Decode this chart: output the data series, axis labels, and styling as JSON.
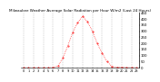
{
  "title": "Milwaukee Weather Average Solar Radiation per Hour W/m2 (Last 24 Hours)",
  "x_values": [
    0,
    1,
    2,
    3,
    4,
    5,
    6,
    7,
    8,
    9,
    10,
    11,
    12,
    13,
    14,
    15,
    16,
    17,
    18,
    19,
    20,
    21,
    22,
    23
  ],
  "y_values": [
    0,
    0,
    0,
    0,
    0,
    0,
    2,
    15,
    80,
    180,
    290,
    370,
    420,
    380,
    300,
    200,
    120,
    50,
    10,
    5,
    3,
    2,
    1,
    0
  ],
  "line_color": "#ff0000",
  "bg_color": "#ffffff",
  "grid_color": "#999999",
  "ylim": [
    0,
    450
  ],
  "xlim": [
    -0.5,
    23.5
  ],
  "yticks": [
    0,
    50,
    100,
    150,
    200,
    250,
    300,
    350,
    400,
    450
  ],
  "ytick_labels": [
    "0",
    "50",
    "100",
    "150",
    "200",
    "250",
    "300",
    "350",
    "400",
    "450"
  ],
  "title_fontsize": 3.0,
  "tick_fontsize": 2.8,
  "grid_xticks": [
    0,
    2,
    4,
    6,
    8,
    10,
    12,
    14,
    16,
    18,
    20,
    22
  ]
}
